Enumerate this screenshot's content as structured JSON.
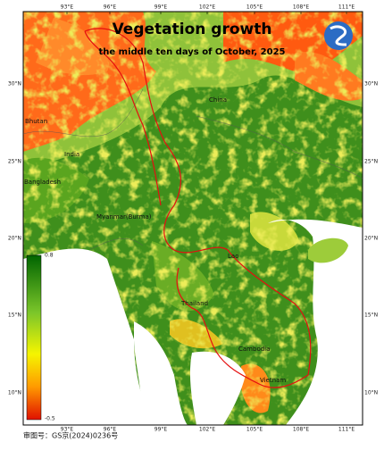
{
  "title": "Vegetation growth",
  "subtitle": "the middle ten days of October, 2025",
  "lon_labels": [
    "93°E",
    "96°E",
    "99°E",
    "102°E",
    "105°E",
    "108°E",
    "111°E"
  ],
  "lat_labels": [
    "30°N",
    "25°N",
    "20°N",
    "15°N",
    "10°N"
  ],
  "country_labels": [
    "Bhutan",
    "India",
    "Bangladesh",
    "Myanmar(Burma)",
    "China",
    "Lao",
    "Thailand",
    "Cambodia",
    "Vietnam"
  ],
  "colorbar": {
    "max": 0.8,
    "min": -0.5
  },
  "footer": "审图号：GS京(2024)0236号"
}
